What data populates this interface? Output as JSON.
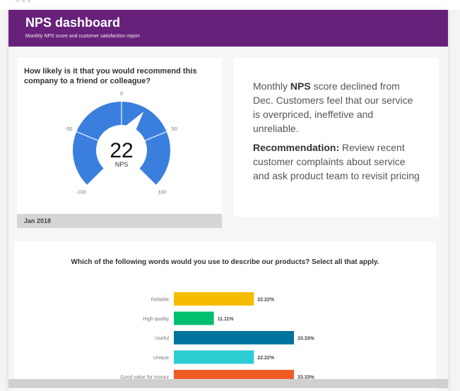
{
  "header": {
    "title": "NPS dashboard",
    "subtitle": "Monthly NPS score and customer satisfaction report"
  },
  "gauge": {
    "question": "How likely is it that you would recommend this company to a friend or colleague?",
    "value": "22",
    "value_num": 22,
    "label": "NPS",
    "ticks": [
      "-100",
      "-50",
      "0",
      "50",
      "100"
    ],
    "min": -100,
    "max": 100,
    "color": "#3a7fde",
    "date": "Jan 2018"
  },
  "info": {
    "p1_a": "Monthly ",
    "p1_b": "NPS",
    "p1_c": " score declined from Dec. Customers feel that our service is overpriced, ineffetive and unreliable.",
    "p2_b": "Recommendation:",
    "p2_c": " Review recent customer complaints about service and ask product team to revisit pricing"
  },
  "chart_data": {
    "type": "bar",
    "title": "Which of the following words would you use to describe our products? Select all that apply.",
    "orientation": "horizontal",
    "categories": [
      "Reliable",
      "High quality",
      "Useful",
      "Unique",
      "Good value for money"
    ],
    "values": [
      22.22,
      11.11,
      33.33,
      22.22,
      33.33
    ],
    "labels": [
      "22.22%",
      "11.11%",
      "33.33%",
      "22.22%",
      "33.33%"
    ],
    "colors": [
      "#f6bd00",
      "#00bf6f",
      "#00739e",
      "#2dccd3",
      "#f05b24"
    ]
  }
}
